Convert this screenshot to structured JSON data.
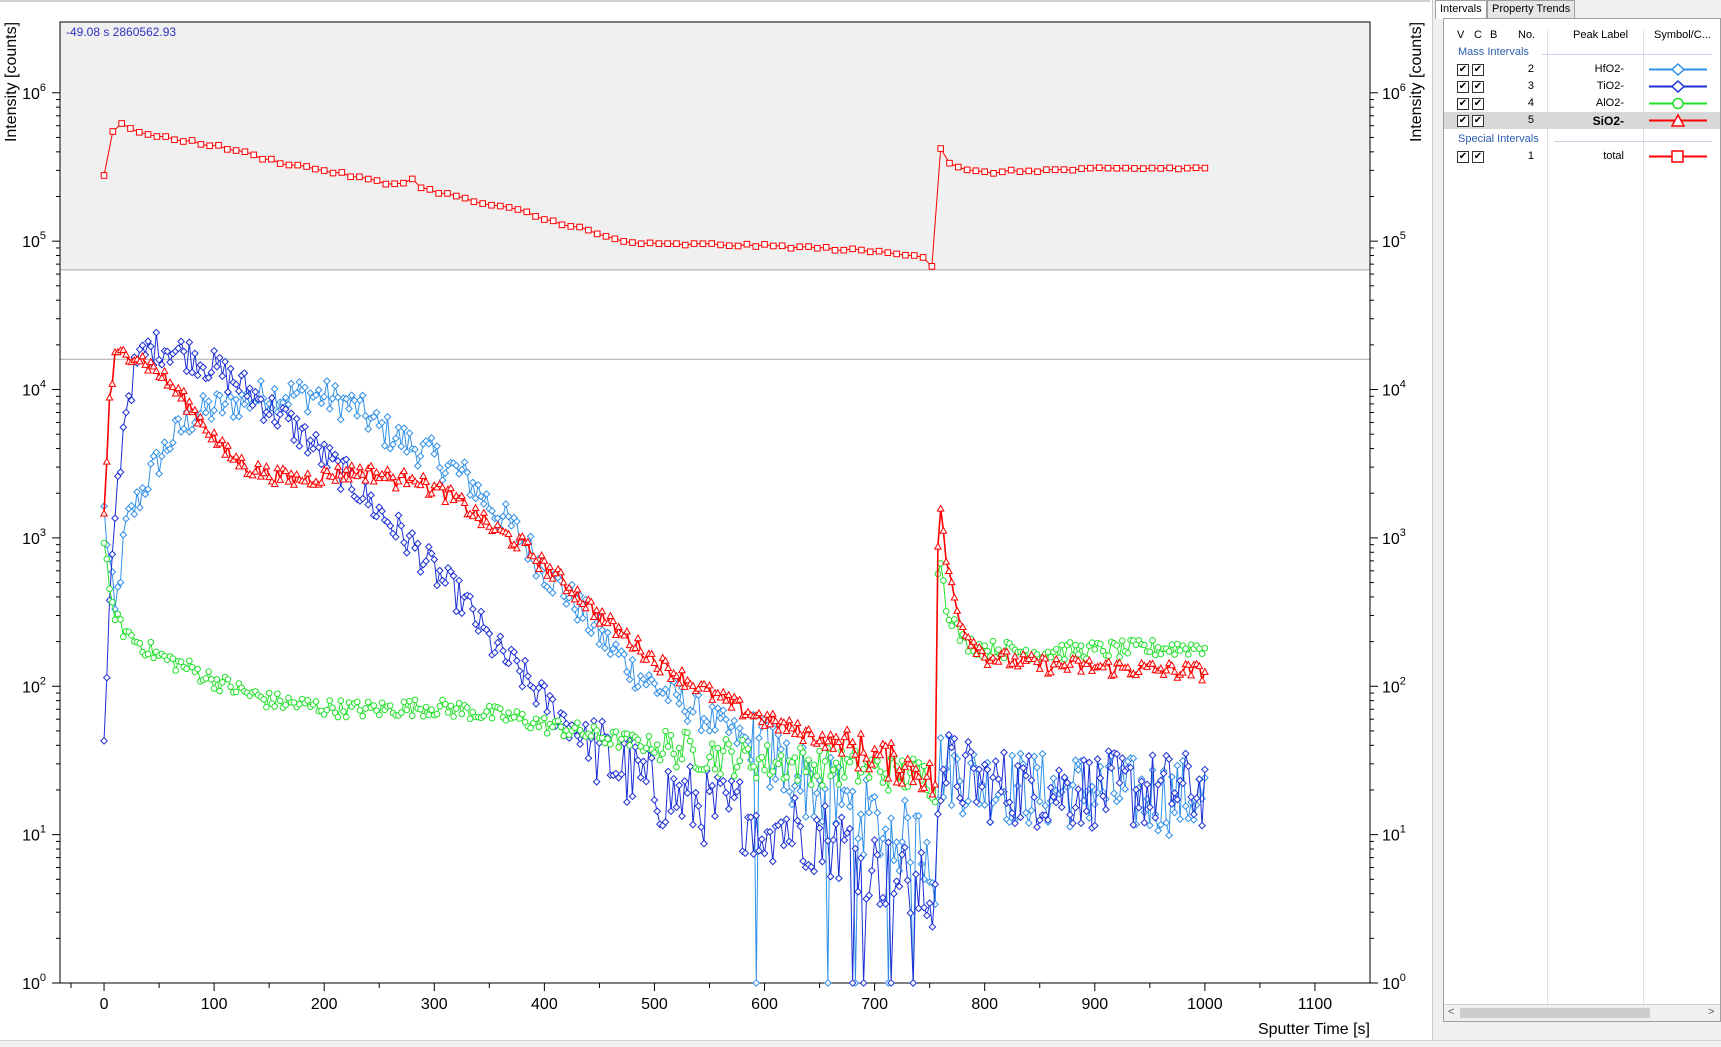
{
  "readout": "-49.08 s  2860562.93",
  "chart_data": {
    "type": "line",
    "xlabel": "Sputter Time [s]",
    "ylabel": "Intensity [counts]",
    "y_right_label": "Intensity [counts]",
    "xlim": [
      -40,
      1150
    ],
    "ylim": [
      1,
      3000000
    ],
    "yscale": "log",
    "x_ticks": [
      0,
      100,
      200,
      300,
      400,
      500,
      600,
      700,
      800,
      900,
      1000,
      1100
    ],
    "y_ticks": [
      1,
      10,
      100,
      1000,
      10000,
      100000,
      1000000
    ],
    "y_tick_exponents": [
      "0",
      "1",
      "2",
      "3",
      "4",
      "5",
      "6"
    ],
    "upper_band_ylim": [
      64000,
      3000000
    ],
    "reference_line_y": 16000,
    "series": [
      {
        "name": "HfO2-",
        "color": "#2f8fe8",
        "marker": "diamond",
        "points": [
          [
            0,
            1500
          ],
          [
            10,
            300
          ],
          [
            20,
            1200
          ],
          [
            40,
            2500
          ],
          [
            60,
            4500
          ],
          [
            80,
            6500
          ],
          [
            100,
            7500
          ],
          [
            130,
            8500
          ],
          [
            150,
            9200
          ],
          [
            180,
            9300
          ],
          [
            200,
            9000
          ],
          [
            230,
            7500
          ],
          [
            250,
            5500
          ],
          [
            280,
            4200
          ],
          [
            300,
            3500
          ],
          [
            330,
            2500
          ],
          [
            350,
            1700
          ],
          [
            380,
            1000
          ],
          [
            400,
            600
          ],
          [
            430,
            350
          ],
          [
            450,
            220
          ],
          [
            480,
            130
          ],
          [
            500,
            100
          ],
          [
            530,
            75
          ],
          [
            550,
            60
          ],
          [
            600,
            35
          ],
          [
            630,
            25
          ],
          [
            650,
            20
          ],
          [
            680,
            15
          ],
          [
            700,
            12
          ],
          [
            720,
            10
          ],
          [
            750,
            8
          ],
          [
            755,
            5
          ],
          [
            758,
            30
          ],
          [
            780,
            25
          ],
          [
            800,
            22
          ],
          [
            850,
            20
          ],
          [
            900,
            20
          ],
          [
            950,
            18
          ],
          [
            1000,
            18
          ]
        ]
      },
      {
        "name": "TiO2-",
        "color": "#1c2fd6",
        "marker": "diamond",
        "points": [
          [
            0,
            35
          ],
          [
            5,
            300
          ],
          [
            10,
            1500
          ],
          [
            20,
            8000
          ],
          [
            30,
            15000
          ],
          [
            40,
            18500
          ],
          [
            55,
            19500
          ],
          [
            80,
            17000
          ],
          [
            100,
            14000
          ],
          [
            130,
            10000
          ],
          [
            150,
            7500
          ],
          [
            180,
            5000
          ],
          [
            200,
            3500
          ],
          [
            230,
            2200
          ],
          [
            250,
            1500
          ],
          [
            280,
            900
          ],
          [
            300,
            600
          ],
          [
            330,
            350
          ],
          [
            350,
            200
          ],
          [
            380,
            120
          ],
          [
            400,
            80
          ],
          [
            430,
            50
          ],
          [
            450,
            35
          ],
          [
            480,
            25
          ],
          [
            500,
            20
          ],
          [
            530,
            17
          ],
          [
            550,
            15
          ],
          [
            580,
            14
          ],
          [
            600,
            12
          ],
          [
            630,
            11
          ],
          [
            650,
            10
          ],
          [
            680,
            8
          ],
          [
            700,
            6
          ],
          [
            720,
            5
          ],
          [
            750,
            4
          ],
          [
            755,
            3
          ],
          [
            758,
            30
          ],
          [
            780,
            25
          ],
          [
            800,
            22
          ],
          [
            850,
            20
          ],
          [
            900,
            20
          ],
          [
            950,
            20
          ],
          [
            1000,
            20
          ]
        ]
      },
      {
        "name": "AlO2-",
        "color": "#22e02a",
        "marker": "circle",
        "points": [
          [
            0,
            1000
          ],
          [
            5,
            400
          ],
          [
            15,
            250
          ],
          [
            30,
            200
          ],
          [
            50,
            160
          ],
          [
            80,
            130
          ],
          [
            100,
            110
          ],
          [
            130,
            90
          ],
          [
            150,
            80
          ],
          [
            180,
            75
          ],
          [
            200,
            72
          ],
          [
            230,
            70
          ],
          [
            250,
            70
          ],
          [
            280,
            72
          ],
          [
            300,
            72
          ],
          [
            320,
            70
          ],
          [
            350,
            65
          ],
          [
            380,
            60
          ],
          [
            400,
            55
          ],
          [
            430,
            50
          ],
          [
            450,
            46
          ],
          [
            480,
            42
          ],
          [
            500,
            40
          ],
          [
            530,
            37
          ],
          [
            550,
            35
          ],
          [
            580,
            33
          ],
          [
            600,
            31
          ],
          [
            630,
            30
          ],
          [
            650,
            29
          ],
          [
            680,
            28
          ],
          [
            700,
            27
          ],
          [
            720,
            26
          ],
          [
            740,
            25
          ],
          [
            750,
            24
          ],
          [
            755,
            22
          ],
          [
            758,
            1000
          ],
          [
            765,
            350
          ],
          [
            780,
            200
          ],
          [
            800,
            180
          ],
          [
            850,
            170
          ],
          [
            900,
            175
          ],
          [
            950,
            180
          ],
          [
            1000,
            185
          ]
        ]
      },
      {
        "name": "SiO2-",
        "color": "#ff0000",
        "marker": "triangle",
        "points": [
          [
            0,
            1500
          ],
          [
            5,
            8000
          ],
          [
            10,
            16000
          ],
          [
            20,
            18000
          ],
          [
            30,
            17000
          ],
          [
            50,
            13000
          ],
          [
            70,
            9000
          ],
          [
            90,
            6000
          ],
          [
            110,
            3800
          ],
          [
            130,
            3000
          ],
          [
            150,
            2700
          ],
          [
            170,
            2500
          ],
          [
            190,
            2550
          ],
          [
            210,
            2700
          ],
          [
            230,
            2800
          ],
          [
            250,
            2700
          ],
          [
            270,
            2400
          ],
          [
            280,
            2800
          ],
          [
            290,
            2300
          ],
          [
            310,
            2000
          ],
          [
            330,
            1600
          ],
          [
            350,
            1200
          ],
          [
            380,
            900
          ],
          [
            400,
            650
          ],
          [
            430,
            420
          ],
          [
            450,
            300
          ],
          [
            480,
            200
          ],
          [
            500,
            150
          ],
          [
            530,
            110
          ],
          [
            550,
            90
          ],
          [
            580,
            70
          ],
          [
            600,
            60
          ],
          [
            630,
            50
          ],
          [
            650,
            45
          ],
          [
            680,
            38
          ],
          [
            700,
            34
          ],
          [
            720,
            30
          ],
          [
            740,
            27
          ],
          [
            750,
            24
          ],
          [
            755,
            20
          ],
          [
            758,
            2000
          ],
          [
            765,
            700
          ],
          [
            780,
            250
          ],
          [
            800,
            160
          ],
          [
            850,
            140
          ],
          [
            900,
            135
          ],
          [
            950,
            130
          ],
          [
            1000,
            125
          ]
        ]
      },
      {
        "name": "total",
        "color": "#ff0000",
        "marker": "square",
        "points": [
          [
            0,
            280000
          ],
          [
            5,
            450000
          ],
          [
            10,
            620000
          ],
          [
            20,
            600000
          ],
          [
            40,
            520000
          ],
          [
            60,
            490000
          ],
          [
            80,
            470000
          ],
          [
            100,
            440000
          ],
          [
            120,
            410000
          ],
          [
            140,
            370000
          ],
          [
            160,
            340000
          ],
          [
            180,
            320000
          ],
          [
            200,
            300000
          ],
          [
            220,
            280000
          ],
          [
            240,
            260000
          ],
          [
            260,
            240000
          ],
          [
            280,
            260000
          ],
          [
            290,
            225000
          ],
          [
            310,
            210000
          ],
          [
            330,
            190000
          ],
          [
            350,
            175000
          ],
          [
            380,
            160000
          ],
          [
            400,
            140000
          ],
          [
            430,
            125000
          ],
          [
            450,
            110000
          ],
          [
            470,
            100000
          ],
          [
            480,
            98000
          ],
          [
            500,
            95000
          ],
          [
            530,
            95000
          ],
          [
            550,
            95000
          ],
          [
            600,
            93000
          ],
          [
            650,
            90000
          ],
          [
            700,
            85000
          ],
          [
            730,
            82000
          ],
          [
            750,
            78000
          ],
          [
            755,
            55000
          ],
          [
            758,
            460000
          ],
          [
            765,
            350000
          ],
          [
            780,
            300000
          ],
          [
            800,
            290000
          ],
          [
            850,
            300000
          ],
          [
            900,
            305000
          ],
          [
            950,
            310000
          ],
          [
            1000,
            310000
          ]
        ]
      }
    ]
  },
  "panel": {
    "tabs": [
      "Intervals",
      "Property Trends"
    ],
    "headers": {
      "v": "V",
      "c": "C",
      "b": "B",
      "no": "No.",
      "label": "Peak Label",
      "symbol": "Symbol/C..."
    },
    "mass_group": "Mass Intervals",
    "special_group": "Special Intervals",
    "check": "✔",
    "rows": [
      {
        "no": "2",
        "label": "HfO2-",
        "color": "#2f8fe8",
        "marker": "diamond"
      },
      {
        "no": "3",
        "label": "TiO2-",
        "color": "#1c2fd6",
        "marker": "diamond"
      },
      {
        "no": "4",
        "label": "AlO2-",
        "color": "#22e02a",
        "marker": "circle"
      },
      {
        "no": "5",
        "label": "SiO2-",
        "color": "#ff0000",
        "marker": "triangle"
      }
    ],
    "special_rows": [
      {
        "no": "1",
        "label": "total",
        "color": "#ff0000",
        "marker": "square"
      }
    ],
    "scroll_left": "<",
    "scroll_right": ">"
  }
}
